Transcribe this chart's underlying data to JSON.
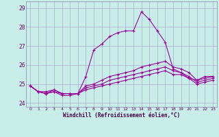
{
  "xlabel": "Windchill (Refroidissement éolien,°C)",
  "background_color": "#c8ece8",
  "grid_color": "#aaaacc",
  "line_color": "#990099",
  "ylim": [
    23.8,
    29.35
  ],
  "xlim": [
    -0.5,
    23.5
  ],
  "yticks": [
    24,
    25,
    26,
    27,
    28,
    29
  ],
  "xticks": [
    0,
    1,
    2,
    3,
    4,
    5,
    6,
    7,
    8,
    9,
    10,
    11,
    12,
    13,
    14,
    15,
    16,
    17,
    18,
    19,
    20,
    21,
    22,
    23
  ],
  "line1": [
    24.9,
    24.6,
    24.6,
    24.7,
    24.5,
    24.5,
    24.5,
    25.4,
    26.8,
    27.1,
    27.5,
    27.7,
    27.8,
    27.8,
    28.8,
    28.4,
    27.8,
    27.2,
    25.8,
    25.6,
    25.3,
    25.2,
    25.4,
    25.4
  ],
  "line2": [
    24.9,
    24.6,
    24.5,
    24.7,
    24.5,
    24.5,
    24.5,
    24.9,
    25.0,
    25.2,
    25.4,
    25.5,
    25.6,
    25.7,
    25.9,
    26.0,
    26.1,
    26.2,
    25.9,
    25.8,
    25.6,
    25.2,
    25.3,
    25.4
  ],
  "line3": [
    24.9,
    24.6,
    24.5,
    24.6,
    24.5,
    24.5,
    24.5,
    24.8,
    24.9,
    25.0,
    25.2,
    25.3,
    25.4,
    25.5,
    25.6,
    25.7,
    25.8,
    25.9,
    25.7,
    25.6,
    25.4,
    25.1,
    25.2,
    25.3
  ],
  "line4": [
    24.9,
    24.6,
    24.5,
    24.6,
    24.4,
    24.4,
    24.5,
    24.7,
    24.8,
    24.9,
    25.0,
    25.1,
    25.2,
    25.3,
    25.4,
    25.5,
    25.6,
    25.7,
    25.5,
    25.5,
    25.3,
    25.0,
    25.1,
    25.2
  ]
}
